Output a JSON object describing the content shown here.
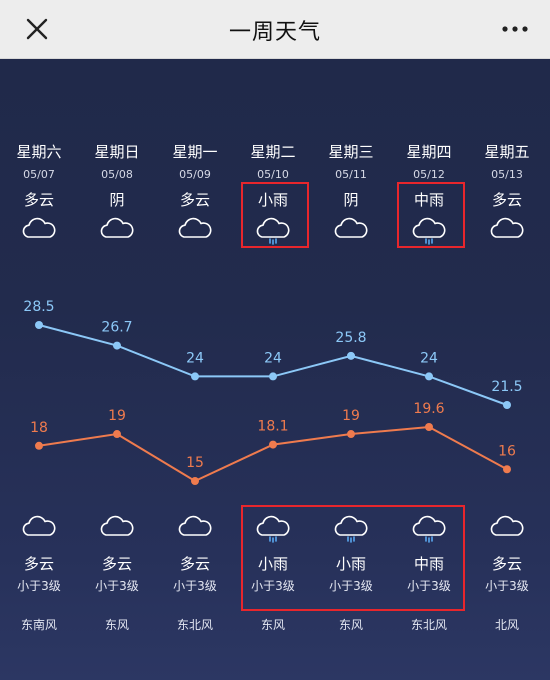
{
  "title": "一周天气",
  "days": [
    {
      "weekday": "星期六",
      "date": "05/07",
      "weather_top": "多云",
      "weather_bottom": "多云",
      "wind_level": "小于3级",
      "wind_dir": "东南风",
      "high": 28.5,
      "low": 18,
      "icon": "cloud-icon"
    },
    {
      "weekday": "星期日",
      "date": "05/08",
      "weather_top": "阴",
      "weather_bottom": "多云",
      "wind_level": "小于3级",
      "wind_dir": "东风",
      "high": 26.7,
      "low": 19,
      "icon": "cloud-icon"
    },
    {
      "weekday": "星期一",
      "date": "05/09",
      "weather_top": "多云",
      "weather_bottom": "多云",
      "wind_level": "小于3级",
      "wind_dir": "东北风",
      "high": 24,
      "low": 15,
      "icon": "cloud-icon"
    },
    {
      "weekday": "星期二",
      "date": "05/10",
      "weather_top": "小雨",
      "weather_bottom": "小雨",
      "wind_level": "小于3级",
      "wind_dir": "东风",
      "high": 24,
      "low": 18.1,
      "icon": "rain-cloud-icon"
    },
    {
      "weekday": "星期三",
      "date": "05/11",
      "weather_top": "阴",
      "weather_bottom": "小雨",
      "wind_level": "小于3级",
      "wind_dir": "东风",
      "high": 25.8,
      "low": 19,
      "icon": "cloud-icon"
    },
    {
      "weekday": "星期四",
      "date": "05/12",
      "weather_top": "中雨",
      "weather_bottom": "中雨",
      "wind_level": "小于3级",
      "wind_dir": "东北风",
      "high": 24,
      "low": 19.6,
      "icon": "rain-cloud-icon"
    },
    {
      "weekday": "星期五",
      "date": "05/13",
      "weather_top": "多云",
      "weather_bottom": "多云",
      "wind_level": "小于3级",
      "wind_dir": "北风",
      "high": 21.5,
      "low": 16,
      "icon": "cloud-icon"
    }
  ],
  "bottom_icons": [
    "cloud-icon",
    "cloud-icon",
    "cloud-icon",
    "rain-cloud-icon",
    "rain-cloud-icon",
    "rain-cloud-icon",
    "cloud-icon"
  ],
  "highlights": {
    "top_days": [
      3,
      5
    ],
    "bottom_days": [
      3,
      4,
      5
    ]
  },
  "colors": {
    "high_line": "#8cc8f7",
    "low_line": "#ef7b4e",
    "highlight": "#e8262c"
  },
  "chart_data": {
    "type": "line",
    "categories": [
      "05/07",
      "05/08",
      "05/09",
      "05/10",
      "05/11",
      "05/12",
      "05/13"
    ],
    "series": [
      {
        "values": [
          28.5,
          26.7,
          24,
          24,
          25.8,
          24,
          21.5
        ]
      },
      {
        "values": [
          18,
          19,
          15,
          18.1,
          19,
          19.6,
          16
        ]
      }
    ],
    "grid": false
  }
}
